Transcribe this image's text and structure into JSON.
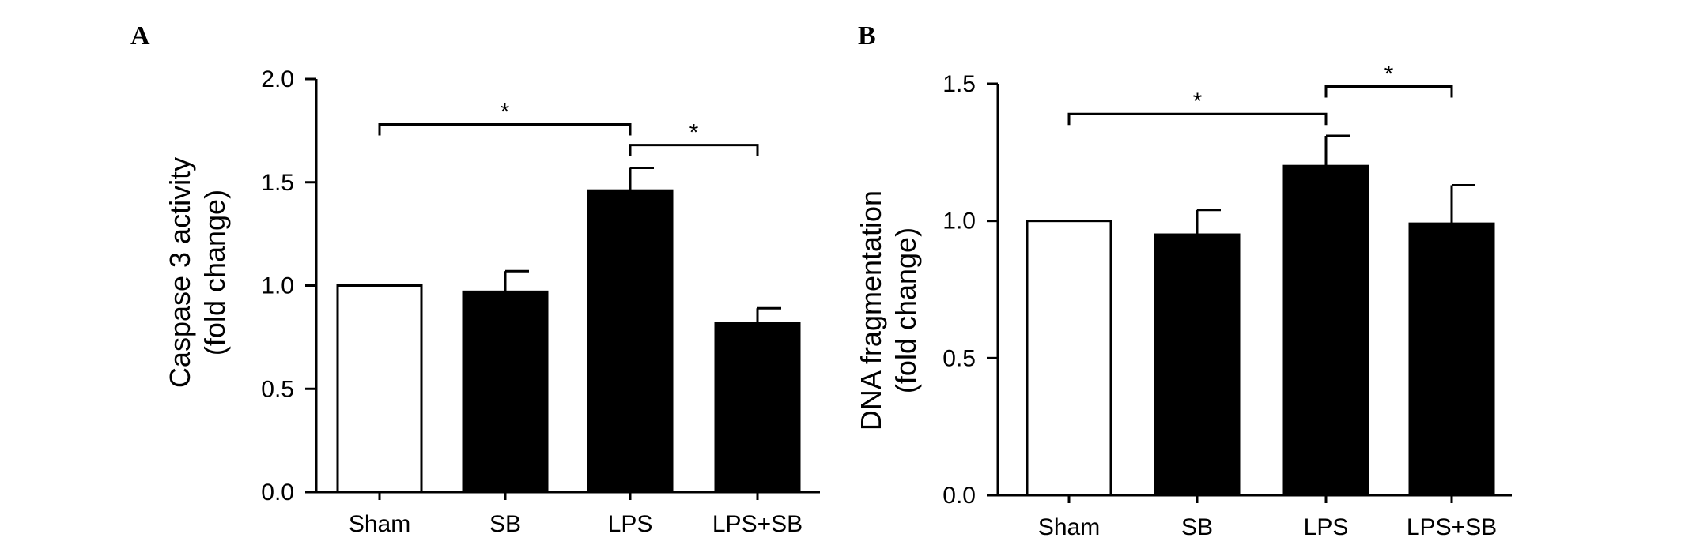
{
  "chart_data": [
    {
      "panel_label": "A",
      "type": "bar",
      "categories": [
        "Sham",
        "SB",
        "LPS",
        "LPS+SB"
      ],
      "values": [
        1.0,
        0.97,
        1.46,
        0.82
      ],
      "errors": [
        0.0,
        0.1,
        0.11,
        0.07
      ],
      "bar_fill": [
        "white",
        "black",
        "black",
        "black"
      ],
      "ylabel_line1": "Caspase 3 activity",
      "ylabel_line2": "(fold change)",
      "ylim": [
        0.0,
        2.0
      ],
      "yticks": [
        0.0,
        0.5,
        1.0,
        1.5,
        2.0
      ],
      "ytick_labels": [
        "0.0",
        "0.5",
        "1.0",
        "1.5",
        "2.0"
      ],
      "grid": false,
      "significance": [
        {
          "from": 0,
          "to": 2,
          "y": 1.78,
          "label": "*"
        },
        {
          "from": 2,
          "to": 3,
          "y": 1.68,
          "label": "*"
        }
      ]
    },
    {
      "panel_label": "B",
      "type": "bar",
      "categories": [
        "Sham",
        "SB",
        "LPS",
        "LPS+SB"
      ],
      "values": [
        1.0,
        0.95,
        1.2,
        0.99
      ],
      "errors": [
        0.0,
        0.09,
        0.11,
        0.14
      ],
      "bar_fill": [
        "white",
        "black",
        "black",
        "black"
      ],
      "ylabel_line1": "DNA fragmentation",
      "ylabel_line2": "(fold change)",
      "ylim": [
        0.0,
        1.5
      ],
      "yticks": [
        0.0,
        0.5,
        1.0,
        1.5
      ],
      "ytick_labels": [
        "0.0",
        "0.5",
        "1.0",
        "1.5"
      ],
      "grid": false,
      "significance": [
        {
          "from": 0,
          "to": 2,
          "y": 1.39,
          "label": "*"
        },
        {
          "from": 2,
          "to": 3,
          "y": 1.49,
          "label": "*"
        }
      ]
    }
  ]
}
